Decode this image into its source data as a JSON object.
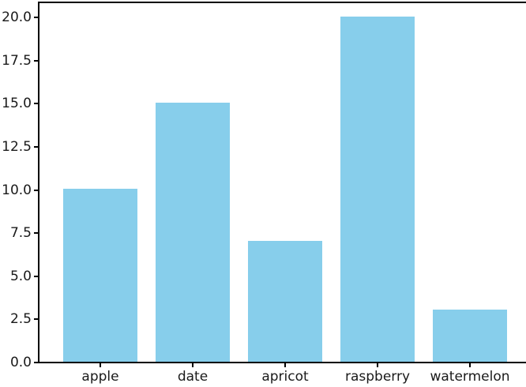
{
  "chart_data": {
    "type": "bar",
    "title": "",
    "xlabel": "",
    "ylabel": "",
    "categories": [
      "apple",
      "date",
      "apricot",
      "raspberry",
      "watermelon"
    ],
    "values": [
      10,
      15,
      7,
      20,
      3
    ],
    "yticks": [
      0,
      2.5,
      5,
      7.5,
      10,
      12.5,
      15,
      17.5,
      20
    ],
    "ytick_labels": [
      "0.0",
      "2.5",
      "5.0",
      "7.5",
      "10.0",
      "12.5",
      "15.0",
      "17.5",
      "20.0"
    ],
    "ylim": [
      0,
      20.9
    ],
    "grid": false,
    "legend": null,
    "colors": {
      "bar": "#87CEEB",
      "axis": "#000000",
      "text": "#1a1a1a",
      "background": "#ffffff"
    }
  }
}
